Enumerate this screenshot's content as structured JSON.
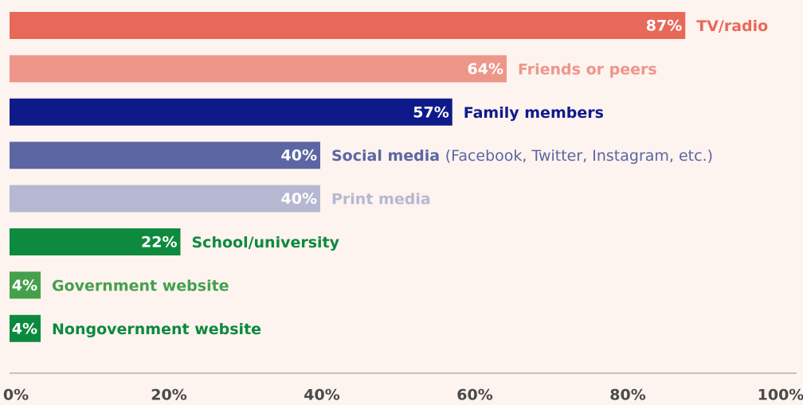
{
  "chart_data": {
    "type": "bar",
    "orientation": "horizontal",
    "categories": [
      "TV/radio",
      "Friends or peers",
      "Family members",
      "Social media",
      "Print media",
      "School/university",
      "Government website",
      "Nongovernment website"
    ],
    "category_details": [
      null,
      null,
      null,
      "(Facebook, Twitter, Instagram, etc.)",
      null,
      null,
      null,
      null
    ],
    "values": [
      87,
      64,
      57,
      40,
      40,
      22,
      4,
      4
    ],
    "value_labels": [
      "87%",
      "64%",
      "57%",
      "40%",
      "40%",
      "22%",
      "4%",
      "4%"
    ],
    "colors": [
      "#e8695a",
      "#ee968a",
      "#0f1a8a",
      "#5c66a3",
      "#b6b8d2",
      "#0e8a3e",
      "#45a04c",
      "#0b8a3e"
    ],
    "xlim": [
      0,
      100
    ],
    "xticks": [
      {
        "value": 0,
        "label": "0%"
      },
      {
        "value": 20,
        "label": "20%"
      },
      {
        "value": 40,
        "label": "40%"
      },
      {
        "value": 60,
        "label": "60%"
      },
      {
        "value": 80,
        "label": "80%"
      },
      {
        "value": 100,
        "label": "100%"
      }
    ]
  }
}
